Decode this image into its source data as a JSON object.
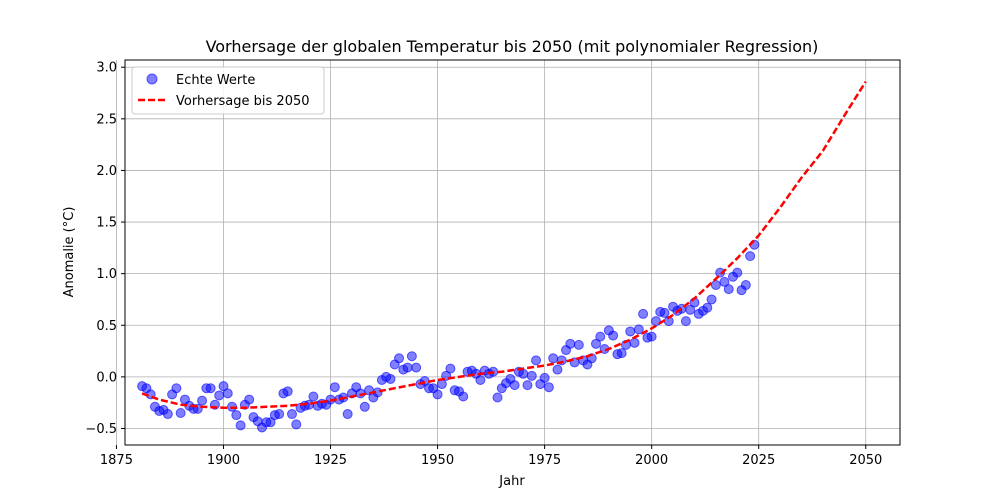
{
  "chart_data": {
    "type": "scatter",
    "title": "Vorhersage der globalen Temperatur bis 2050 (mit polynomialer Regression)",
    "xlabel": "Jahr",
    "ylabel": "Anomalie (°C)",
    "xlim": [
      1877,
      2058
    ],
    "ylim": [
      -0.66,
      3.07
    ],
    "xticks": [
      1875,
      1900,
      1925,
      1950,
      1975,
      2000,
      2025,
      2050
    ],
    "yticks": [
      -0.5,
      0.0,
      0.5,
      1.0,
      1.5,
      2.0,
      2.5,
      3.0
    ],
    "xtick_labels": [
      "1875",
      "1900",
      "1925",
      "1950",
      "1975",
      "2000",
      "2025",
      "2050"
    ],
    "ytick_labels": [
      "−0.5",
      "0.0",
      "0.5",
      "1.0",
      "1.5",
      "2.0",
      "2.5",
      "3.0"
    ],
    "grid": true,
    "legend_position": "top-left",
    "series": [
      {
        "name": "Echte Werte",
        "kind": "scatter",
        "color": "#0000ff",
        "x": [
          1881,
          1882,
          1883,
          1884,
          1885,
          1886,
          1887,
          1888,
          1889,
          1890,
          1891,
          1892,
          1893,
          1894,
          1895,
          1896,
          1897,
          1898,
          1899,
          1900,
          1901,
          1902,
          1903,
          1904,
          1905,
          1906,
          1907,
          1908,
          1909,
          1910,
          1911,
          1912,
          1913,
          1914,
          1915,
          1916,
          1917,
          1918,
          1919,
          1920,
          1921,
          1922,
          1923,
          1924,
          1925,
          1926,
          1927,
          1928,
          1929,
          1930,
          1931,
          1932,
          1933,
          1934,
          1935,
          1936,
          1937,
          1938,
          1939,
          1940,
          1941,
          1942,
          1943,
          1944,
          1945,
          1946,
          1947,
          1948,
          1949,
          1950,
          1951,
          1952,
          1953,
          1954,
          1955,
          1956,
          1957,
          1958,
          1959,
          1960,
          1961,
          1962,
          1963,
          1964,
          1965,
          1966,
          1967,
          1968,
          1969,
          1970,
          1971,
          1972,
          1973,
          1974,
          1975,
          1976,
          1977,
          1978,
          1979,
          1980,
          1981,
          1982,
          1983,
          1984,
          1985,
          1986,
          1987,
          1988,
          1989,
          1990,
          1991,
          1992,
          1993,
          1994,
          1995,
          1996,
          1997,
          1998,
          1999,
          2000,
          2001,
          2002,
          2003,
          2004,
          2005,
          2006,
          2007,
          2008,
          2009,
          2010,
          2011,
          2012,
          2013,
          2014,
          2015,
          2016,
          2017,
          2018,
          2019,
          2020,
          2021,
          2022,
          2023,
          2024
        ],
        "y": [
          -0.09,
          -0.11,
          -0.17,
          -0.29,
          -0.33,
          -0.32,
          -0.36,
          -0.17,
          -0.11,
          -0.35,
          -0.22,
          -0.28,
          -0.31,
          -0.31,
          -0.23,
          -0.11,
          -0.11,
          -0.27,
          -0.18,
          -0.09,
          -0.16,
          -0.29,
          -0.37,
          -0.47,
          -0.27,
          -0.22,
          -0.39,
          -0.43,
          -0.49,
          -0.44,
          -0.44,
          -0.37,
          -0.36,
          -0.16,
          -0.14,
          -0.36,
          -0.46,
          -0.3,
          -0.28,
          -0.27,
          -0.19,
          -0.28,
          -0.26,
          -0.27,
          -0.22,
          -0.1,
          -0.22,
          -0.2,
          -0.36,
          -0.16,
          -0.1,
          -0.16,
          -0.29,
          -0.13,
          -0.2,
          -0.15,
          -0.03,
          0.0,
          -0.02,
          0.12,
          0.18,
          0.07,
          0.09,
          0.2,
          0.09,
          -0.07,
          -0.04,
          -0.11,
          -0.11,
          -0.17,
          -0.07,
          0.01,
          0.08,
          -0.13,
          -0.14,
          -0.19,
          0.05,
          0.06,
          0.03,
          -0.03,
          0.06,
          0.03,
          0.05,
          -0.2,
          -0.11,
          -0.06,
          -0.02,
          -0.08,
          0.05,
          0.03,
          -0.08,
          0.01,
          0.16,
          -0.07,
          -0.01,
          -0.1,
          0.18,
          0.07,
          0.16,
          0.26,
          0.32,
          0.14,
          0.31,
          0.16,
          0.12,
          0.18,
          0.32,
          0.39,
          0.27,
          0.45,
          0.4,
          0.22,
          0.23,
          0.31,
          0.44,
          0.33,
          0.46,
          0.61,
          0.38,
          0.39,
          0.54,
          0.63,
          0.62,
          0.54,
          0.68,
          0.64,
          0.66,
          0.54,
          0.65,
          0.72,
          0.61,
          0.64,
          0.67,
          0.75,
          0.89,
          1.01,
          0.92,
          0.85,
          0.97,
          1.01,
          0.84,
          0.89,
          1.17,
          1.28
        ]
      },
      {
        "name": "Vorhersage bis 2050",
        "kind": "line",
        "color": "#ff0000",
        "x": [
          1881,
          1885,
          1890,
          1895,
          1900,
          1905,
          1910,
          1915,
          1920,
          1925,
          1930,
          1935,
          1940,
          1945,
          1950,
          1955,
          1960,
          1965,
          1970,
          1975,
          1980,
          1985,
          1990,
          1995,
          2000,
          2005,
          2010,
          2015,
          2020,
          2025,
          2030,
          2035,
          2040,
          2045,
          2050
        ],
        "y": [
          -0.16,
          -0.22,
          -0.27,
          -0.29,
          -0.3,
          -0.3,
          -0.29,
          -0.28,
          -0.26,
          -0.23,
          -0.19,
          -0.15,
          -0.11,
          -0.07,
          -0.03,
          0.0,
          0.03,
          0.05,
          0.08,
          0.11,
          0.15,
          0.2,
          0.27,
          0.36,
          0.47,
          0.6,
          0.76,
          0.95,
          1.15,
          1.37,
          1.64,
          1.93,
          2.19,
          2.53,
          2.86
        ]
      }
    ]
  }
}
